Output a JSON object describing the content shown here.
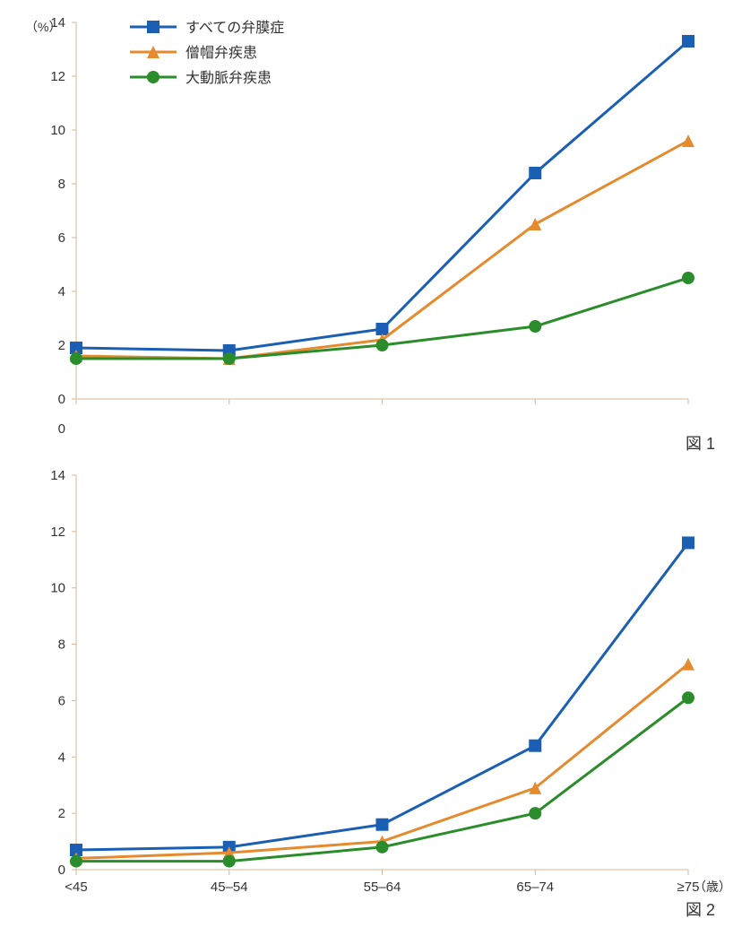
{
  "unit_label": "（%）",
  "x_axis_unit": "（歳）",
  "legend": {
    "items": [
      {
        "label": "すべての弁膜症",
        "color": "#1a5fb4",
        "marker": "square"
      },
      {
        "label": "僧帽弁疾患",
        "color": "#e68a2e",
        "marker": "triangle"
      },
      {
        "label": "大動脈弁疾患",
        "color": "#2a8c2a",
        "marker": "circle"
      }
    ]
  },
  "x_categories": [
    "<45",
    "45–54",
    "55–64",
    "65–74",
    "≥75"
  ],
  "chart1": {
    "type": "line",
    "title": "図 1",
    "ylim": [
      0,
      14
    ],
    "ytick_step": 2,
    "axis_color": "#d4b896",
    "line_width": 3,
    "marker_size": 7,
    "tick_fontsize": 15,
    "series": [
      {
        "color": "#1a5fb4",
        "marker": "square",
        "values": [
          1.9,
          1.8,
          2.6,
          8.4,
          13.3
        ]
      },
      {
        "color": "#e68a2e",
        "marker": "triangle",
        "values": [
          1.6,
          1.5,
          2.2,
          6.5,
          9.6
        ]
      },
      {
        "color": "#2a8c2a",
        "marker": "circle",
        "values": [
          1.5,
          1.5,
          2.0,
          2.7,
          4.5
        ]
      }
    ]
  },
  "chart2": {
    "type": "line",
    "title": "図 2",
    "ylim": [
      0,
      14
    ],
    "ytick_step": 2,
    "axis_color": "#d4b896",
    "line_width": 3,
    "marker_size": 7,
    "tick_fontsize": 15,
    "series": [
      {
        "color": "#1a5fb4",
        "marker": "square",
        "values": [
          0.7,
          0.8,
          1.6,
          4.4,
          11.6
        ]
      },
      {
        "color": "#e68a2e",
        "marker": "triangle",
        "values": [
          0.4,
          0.6,
          1.0,
          2.9,
          7.3
        ]
      },
      {
        "color": "#2a8c2a",
        "marker": "circle",
        "values": [
          0.3,
          0.3,
          0.8,
          2.0,
          6.1
        ]
      }
    ]
  }
}
